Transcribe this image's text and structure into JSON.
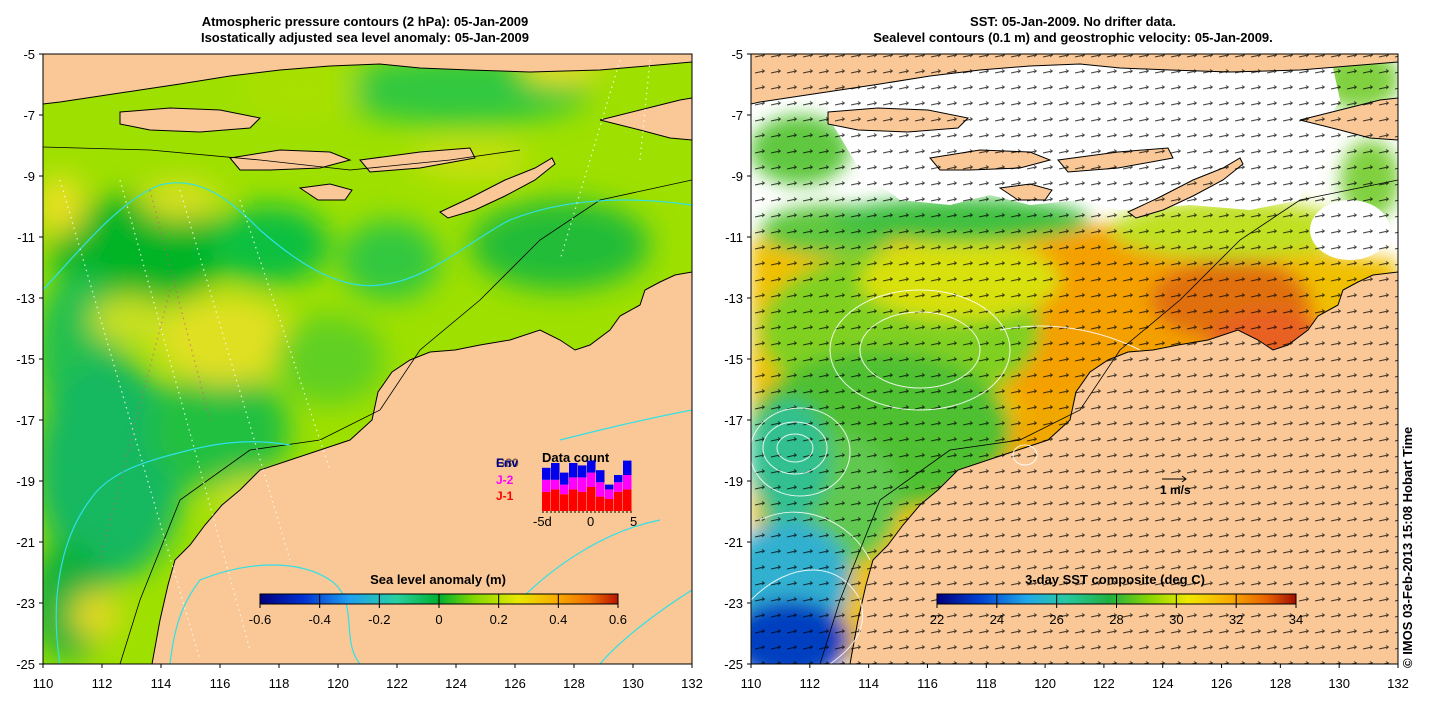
{
  "left_panel": {
    "title_line1": "Atmospheric pressure contours (2 hPa): 05-Jan-2009",
    "title_line2": "Isostatically adjusted sea level anomaly: 05-Jan-2009",
    "colorbar_label": "Sea level anomaly (m)",
    "colorbar_ticks": [
      "-0.6",
      "-0.4",
      "-0.2",
      "0",
      "0.2",
      "0.4",
      "0.6"
    ],
    "legend": {
      "items": [
        {
          "label": "Env",
          "color": "#0000cc"
        },
        {
          "label": "G80",
          "color": "#000000"
        },
        {
          "label": "J-2",
          "color": "#ff00ff"
        },
        {
          "label": "J-1",
          "color": "#ff0000"
        }
      ],
      "title": "Data count",
      "axis_ticks": [
        "-5d",
        "0",
        "5"
      ],
      "bars": {
        "j1": [
          0.4,
          0.45,
          0.35,
          0.45,
          0.4,
          0.5,
          0.3,
          0.25,
          0.4,
          0.45
        ],
        "j2": [
          0.25,
          0.2,
          0.2,
          0.25,
          0.3,
          0.3,
          0.3,
          0.2,
          0.2,
          0.3
        ],
        "env": [
          0.25,
          0.35,
          0.25,
          0.3,
          0.25,
          0.25,
          0.25,
          0.1,
          0.15,
          0.3
        ]
      }
    }
  },
  "right_panel": {
    "title_line1": "SST: 05-Jan-2009. No drifter data.",
    "title_line2": "Sealevel contours (0.1 m) and geostrophic velocity: 05-Jan-2009.",
    "colorbar_label": "3-day SST composite (deg C)",
    "colorbar_ticks": [
      "22",
      "24",
      "26",
      "28",
      "30",
      "32",
      "34"
    ],
    "velocity_scale_label": "1 m/s"
  },
  "axes": {
    "x_ticks": [
      "110",
      "112",
      "114",
      "116",
      "118",
      "120",
      "122",
      "124",
      "126",
      "128",
      "130",
      "132"
    ],
    "y_ticks": [
      "-5",
      "-7",
      "-9",
      "-11",
      "-13",
      "-15",
      "-17",
      "-19",
      "-21",
      "-23",
      "-25"
    ],
    "x_range": [
      110,
      132
    ],
    "y_range": [
      -25,
      -5
    ]
  },
  "colors": {
    "land": "#f9c896",
    "sla_colormap": [
      "#00007f",
      "#0030d0",
      "#1fa0f0",
      "#28d0a0",
      "#00b030",
      "#86d800",
      "#e8e800",
      "#f8b000",
      "#f07000",
      "#b81400"
    ],
    "sst_colormap": [
      "#00007f",
      "#0040d0",
      "#20a8e8",
      "#28c8a0",
      "#20b040",
      "#90d800",
      "#f0e800",
      "#f8a800",
      "#e86000",
      "#a01000"
    ]
  },
  "copyright": "© IMOS 03-Feb-2013 15:08 Hobart Time"
}
